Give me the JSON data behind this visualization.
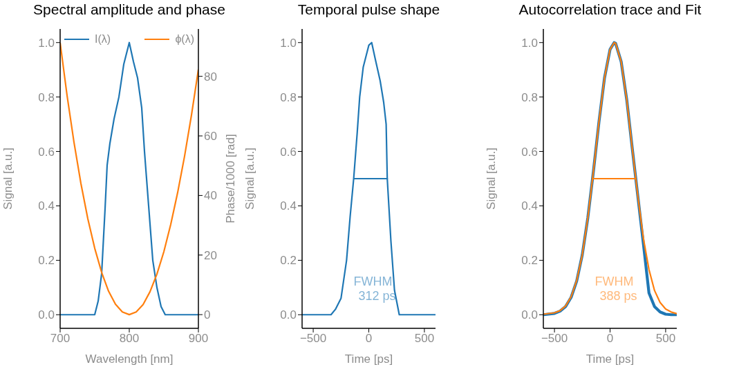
{
  "chart_data": [
    {
      "type": "line",
      "title": "Spectral amplitude and phase",
      "xlabel": "Wavelength [nm]",
      "ylabel": "Signal [a.u.]",
      "y2label": "Phase/1000 [rad]",
      "xlim": [
        700,
        900
      ],
      "xticks": [
        700,
        800,
        900
      ],
      "ylim": [
        -0.05,
        1.05
      ],
      "yticks": [
        {
          "value": 0,
          "label": "0.0"
        },
        {
          "value": 0.2,
          "label": "0.2"
        },
        {
          "value": 0.4,
          "label": "0.4"
        },
        {
          "value": 0.6,
          "label": "0.6"
        },
        {
          "value": 0.8,
          "label": "0.8"
        },
        {
          "value": 1,
          "label": "1.0"
        }
      ],
      "y2lim": [
        -4.6,
        95.9
      ],
      "y2ticks": [
        0,
        20,
        40,
        60,
        80
      ],
      "legend": "top",
      "marker": "none",
      "line_style": "solid",
      "series": [
        {
          "name": "I(λ)",
          "color": "#1f77b4",
          "x": [
            700,
            750,
            755,
            760,
            765,
            768,
            772,
            778,
            785,
            792,
            800,
            806,
            812,
            818,
            822,
            828,
            834,
            840,
            846,
            852,
            900
          ],
          "values": [
            0,
            0,
            0.05,
            0.15,
            0.39,
            0.55,
            0.63,
            0.72,
            0.8,
            0.92,
            1.0,
            0.93,
            0.87,
            0.76,
            0.6,
            0.4,
            0.2,
            0.1,
            0.03,
            0,
            0
          ]
        },
        {
          "name": "ϕ(λ)",
          "color": "#ff7f0e",
          "axis": "y2",
          "x": [
            700,
            710,
            720,
            730,
            740,
            750,
            760,
            770,
            780,
            790,
            800,
            810,
            820,
            830,
            840,
            850,
            860,
            870,
            880,
            890,
            900
          ],
          "values": [
            91.3,
            73.6,
            57.9,
            44.1,
            32.2,
            22.3,
            14.2,
            7.9,
            3.5,
            0.9,
            0,
            0.9,
            3.4,
            7.7,
            13.6,
            21.1,
            30.3,
            41.0,
            53.2,
            67.0,
            82.3
          ]
        }
      ]
    },
    {
      "type": "line",
      "title": "Temporal pulse shape",
      "xlabel": "Time [ps]",
      "ylabel": "Signal [a.u.]",
      "xlim": [
        -600,
        600
      ],
      "xticks": [
        {
          "value": -500,
          "label": "−500"
        },
        0,
        500
      ],
      "ylim": [
        -0.05,
        1.05
      ],
      "yticks": [
        {
          "value": 0,
          "label": "0.0"
        },
        {
          "value": 0.2,
          "label": "0.2"
        },
        {
          "value": 0.4,
          "label": "0.4"
        },
        {
          "value": 0.6,
          "label": "0.6"
        },
        {
          "value": 0.8,
          "label": "0.8"
        },
        {
          "value": 1,
          "label": "1.0"
        }
      ],
      "marker": "none",
      "line_style": "solid",
      "annotations": [
        "FWHM\n312 ps"
      ],
      "series": [
        {
          "color": "#1f77b4",
          "x": [
            -600,
            -340,
            -300,
            -250,
            -200,
            -168,
            -136,
            -104,
            -82,
            -50,
            0,
            26,
            58,
            102,
            134,
            156,
            166,
            199,
            231,
            274,
            600
          ],
          "values": [
            0,
            0,
            0.02,
            0.06,
            0.2,
            0.36,
            0.5,
            0.67,
            0.8,
            0.91,
            0.99,
            1.0,
            0.94,
            0.86,
            0.78,
            0.7,
            0.5,
            0.27,
            0.09,
            0,
            0
          ]
        },
        {
          "color": "#1f77b4",
          "x": [
            -140,
            172
          ],
          "values": [
            0.5,
            0.5
          ]
        }
      ]
    },
    {
      "type": "line",
      "title": "Autocorrelation trace and Fit",
      "xlabel": "Time [ps]",
      "ylabel": "Signal [a.u.]",
      "xlim": [
        -600,
        600
      ],
      "xticks": [
        {
          "value": -500,
          "label": "−500"
        },
        0,
        500
      ],
      "ylim": [
        -0.05,
        1.05
      ],
      "yticks": [
        {
          "value": 0,
          "label": "0.0"
        },
        {
          "value": 0.2,
          "label": "0.2"
        },
        {
          "value": 0.4,
          "label": "0.4"
        },
        {
          "value": 0.6,
          "label": "0.6"
        },
        {
          "value": 0.8,
          "label": "0.8"
        },
        {
          "value": 1,
          "label": "1.0"
        }
      ],
      "marker": "none",
      "line_style": "solid",
      "annotations": [
        "FWHM\n388 ps"
      ],
      "series": [
        {
          "color": "#1f77b4",
          "x": [
            -600,
            -500,
            -450,
            -400,
            -350,
            -300,
            -250,
            -200,
            -150,
            -100,
            -50,
            0,
            37,
            50,
            100,
            150,
            200,
            250,
            300,
            350,
            400,
            450,
            500,
            550,
            600
          ],
          "values": [
            0,
            0.005,
            0.013,
            0.03,
            0.064,
            0.124,
            0.22,
            0.356,
            0.526,
            0.708,
            0.87,
            0.975,
            1,
            0.997,
            0.93,
            0.79,
            0.61,
            0.435,
            0.26,
            0.08,
            0.03,
            0.01,
            0.002,
            0,
            0
          ]
        },
        {
          "color": "#ff7f0e",
          "x": [
            -600,
            -500,
            -450,
            -400,
            -350,
            -300,
            -250,
            -200,
            -150,
            -100,
            -50,
            0,
            37,
            50,
            100,
            150,
            200,
            250,
            300,
            350,
            400,
            450,
            500,
            550,
            600
          ],
          "values": [
            0.002,
            0.007,
            0.015,
            0.032,
            0.066,
            0.126,
            0.22,
            0.356,
            0.526,
            0.708,
            0.87,
            0.975,
            1,
            0.997,
            0.93,
            0.79,
            0.61,
            0.435,
            0.28,
            0.166,
            0.089,
            0.045,
            0.021,
            0.01,
            0.004
          ]
        },
        {
          "color": "#ff7f0e",
          "x": [
            -157,
            231
          ],
          "values": [
            0.5,
            0.5
          ]
        }
      ]
    }
  ]
}
